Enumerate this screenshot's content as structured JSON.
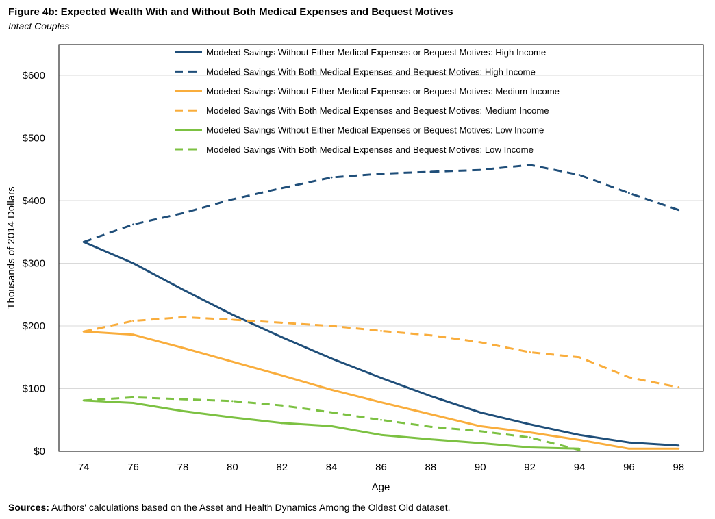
{
  "figure": {
    "title": "Figure 4b: Expected Wealth With and Without Both Medical Expenses and Bequest Motives",
    "subtitle": "Intact Couples",
    "sources_label": "Sources:",
    "sources_text": " Authors' calculations based on the Asset and Health Dynamics Among the Oldest Old dataset."
  },
  "chart_data": {
    "type": "line",
    "title": "Figure 4b: Expected Wealth With and Without Both Medical Expenses and Bequest Motives",
    "subtitle": "Intact Couples",
    "xlabel": "Age",
    "ylabel": "Thousands of 2014 Dollars",
    "x": [
      74,
      76,
      78,
      80,
      82,
      84,
      86,
      88,
      90,
      92,
      94,
      96,
      98
    ],
    "xlim": [
      73,
      99
    ],
    "ylim": [
      0,
      600
    ],
    "yticks": [
      0,
      100,
      200,
      300,
      400,
      500,
      600
    ],
    "ytick_labels": [
      "$0",
      "$100",
      "$200",
      "$300",
      "$400",
      "$500",
      "$600"
    ],
    "grid": "horizontal",
    "legend_position": "top-center",
    "series": [
      {
        "name": "Modeled Savings Without Either Medical Expenses or Bequest Motives: High Income",
        "color": "#1f4e79",
        "style": "solid",
        "x": [
          74,
          76,
          78,
          80,
          82,
          84,
          86,
          88,
          90,
          92,
          94,
          96,
          98
        ],
        "values": [
          334,
          300,
          258,
          218,
          182,
          148,
          117,
          88,
          62,
          43,
          26,
          14,
          9
        ]
      },
      {
        "name": "Modeled Savings With Both Medical Expenses and Bequest Motives: High Income",
        "color": "#1f4e79",
        "style": "dashed",
        "x": [
          74,
          76,
          78,
          80,
          82,
          84,
          86,
          88,
          90,
          92,
          94,
          96,
          98
        ],
        "values": [
          334,
          362,
          380,
          402,
          420,
          437,
          443,
          446,
          449,
          457,
          441,
          412,
          385
        ]
      },
      {
        "name": "Modeled Savings Without Either Medical Expenses or Bequest Motives: Medium Income",
        "color": "#f9ad3c",
        "style": "solid",
        "x": [
          74,
          76,
          78,
          80,
          82,
          84,
          86,
          88,
          90,
          92,
          94,
          96,
          98
        ],
        "values": [
          191,
          186,
          165,
          143,
          121,
          98,
          78,
          59,
          40,
          30,
          18,
          4,
          4
        ]
      },
      {
        "name": "Modeled Savings With Both Medical Expenses and Bequest Motives: Medium Income",
        "color": "#f9ad3c",
        "style": "dashed",
        "x": [
          74,
          76,
          78,
          80,
          82,
          84,
          86,
          88,
          90,
          92,
          94,
          96,
          98
        ],
        "values": [
          191,
          208,
          214,
          210,
          205,
          200,
          192,
          185,
          174,
          158,
          150,
          118,
          102
        ]
      },
      {
        "name": "Modeled Savings Without Either Medical Expenses or Bequest Motives: Low Income",
        "color": "#7cc142",
        "style": "solid",
        "x": [
          74,
          76,
          78,
          80,
          82,
          84,
          86,
          88,
          90,
          92,
          94
        ],
        "values": [
          81,
          77,
          64,
          54,
          45,
          40,
          26,
          19,
          13,
          6,
          4
        ]
      },
      {
        "name": "Modeled Savings With Both Medical Expenses and Bequest Motives: Low Income",
        "color": "#7cc142",
        "style": "dashed",
        "x": [
          74,
          76,
          78,
          80,
          82,
          84,
          86,
          88,
          90,
          92,
          94
        ],
        "values": [
          81,
          86,
          83,
          80,
          73,
          62,
          50,
          39,
          32,
          22,
          2
        ]
      }
    ]
  }
}
